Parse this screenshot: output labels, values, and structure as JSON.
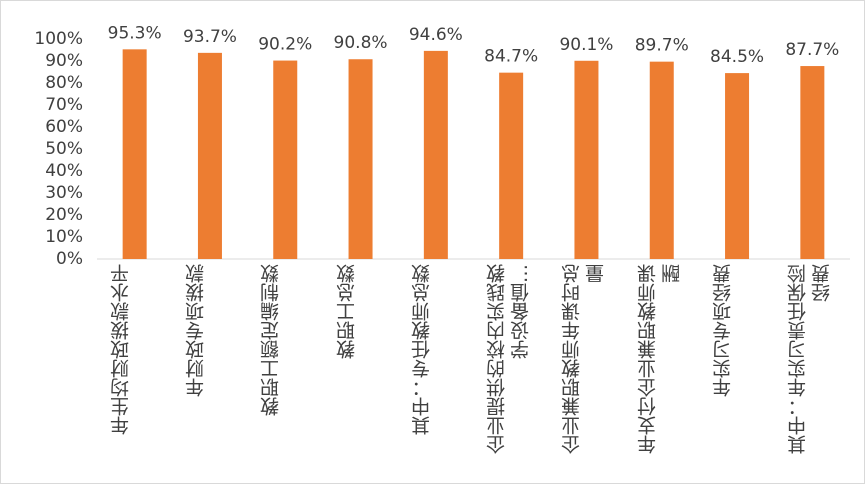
{
  "chart_data": {
    "type": "bar",
    "categories": [
      "年生均财政拨款水平",
      "年财政专项拨款",
      "教职工额定编制数",
      "教职工总数",
      "其中：专任教师总数",
      "企业提供的校内实践教学设备值…",
      "企业兼职教师年课时总量",
      "年支付企业兼职教师课酬",
      "年实习专项经费",
      "其中：年实习责任保险经费"
    ],
    "values": [
      95.3,
      93.7,
      90.2,
      90.8,
      94.6,
      84.7,
      90.1,
      89.7,
      84.5,
      87.7
    ],
    "value_labels": [
      "95.3%",
      "93.7%",
      "90.2%",
      "90.8%",
      "94.6%",
      "84.7%",
      "90.1%",
      "89.7%",
      "84.5%",
      "87.7%"
    ],
    "color": "#ed7d31",
    "ylim": [
      0,
      100
    ],
    "yticks": [
      {
        "value": 0,
        "label": "0%"
      },
      {
        "value": 10,
        "label": "10%"
      },
      {
        "value": 20,
        "label": "20%"
      },
      {
        "value": 30,
        "label": "30%"
      },
      {
        "value": 40,
        "label": "40%"
      },
      {
        "value": 50,
        "label": "50%"
      },
      {
        "value": 60,
        "label": "60%"
      },
      {
        "value": 70,
        "label": "70%"
      },
      {
        "value": 80,
        "label": "80%"
      },
      {
        "value": 90,
        "label": "90%"
      },
      {
        "value": 100,
        "label": "100%"
      }
    ],
    "grid": false
  }
}
